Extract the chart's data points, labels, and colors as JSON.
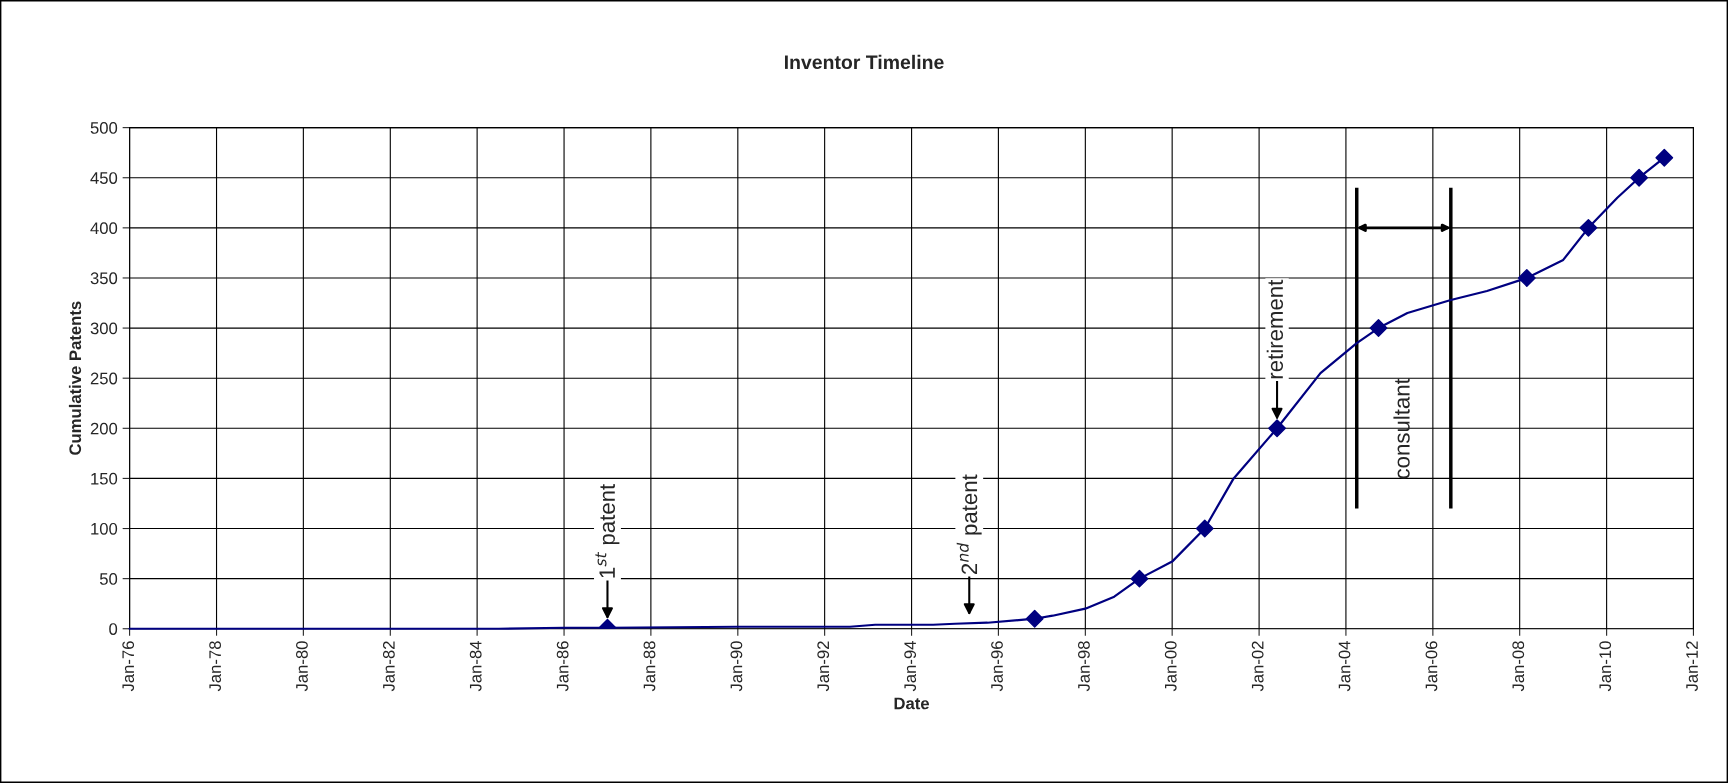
{
  "chart_data": {
    "type": "line",
    "title": "Inventor Timeline",
    "xlabel": "Date",
    "ylabel": "Cumulative Patents",
    "series": [
      {
        "color": "#000080",
        "marker": "none",
        "x": [
          "1976-01",
          "1984-07",
          "1986-01",
          "1987-01",
          "1990-01",
          "1992-08",
          "1993-03",
          "1994-07",
          "1995-01",
          "1995-10",
          "1996-11",
          "1997-04",
          "1998-01",
          "1998-09",
          "1999-04",
          "2000-01",
          "2000-10",
          "2001-06",
          "2002-06",
          "2003-06",
          "2004-04",
          "2004-10",
          "2005-06",
          "2006-06",
          "2007-04",
          "2008-03",
          "2009-01",
          "2009-08",
          "2010-04",
          "2010-10",
          "2011-05"
        ],
        "values": [
          0,
          0,
          1,
          1,
          2,
          2,
          4,
          4,
          5,
          6,
          10,
          13,
          20,
          32,
          50,
          67,
          100,
          150,
          200,
          255,
          285,
          300,
          315,
          328,
          337,
          350,
          368,
          400,
          430,
          450,
          470
        ]
      },
      {
        "type": "scatter",
        "color": "#000080",
        "marker": "diamond",
        "x": [
          "1987-01",
          "1996-11",
          "1999-04",
          "2000-10",
          "2002-06",
          "2004-10",
          "2008-03",
          "2009-08",
          "2010-10",
          "2011-05"
        ],
        "values": [
          1,
          10,
          50,
          100,
          200,
          300,
          350,
          400,
          450,
          470
        ]
      }
    ],
    "xlim": [
      "1976-01",
      "2012-01"
    ],
    "xticks": [
      {
        "value": "1976-01",
        "label": "Jan-76"
      },
      {
        "value": "1978-01",
        "label": "Jan-78"
      },
      {
        "value": "1980-01",
        "label": "Jan-80"
      },
      {
        "value": "1982-01",
        "label": "Jan-82"
      },
      {
        "value": "1984-01",
        "label": "Jan-84"
      },
      {
        "value": "1986-01",
        "label": "Jan-86"
      },
      {
        "value": "1988-01",
        "label": "Jan-88"
      },
      {
        "value": "1990-01",
        "label": "Jan-90"
      },
      {
        "value": "1992-01",
        "label": "Jan-92"
      },
      {
        "value": "1994-01",
        "label": "Jan-94"
      },
      {
        "value": "1996-01",
        "label": "Jan-96"
      },
      {
        "value": "1998-01",
        "label": "Jan-98"
      },
      {
        "value": "2000-01",
        "label": "Jan-00"
      },
      {
        "value": "2002-01",
        "label": "Jan-02"
      },
      {
        "value": "2004-01",
        "label": "Jan-04"
      },
      {
        "value": "2006-01",
        "label": "Jan-06"
      },
      {
        "value": "2008-01",
        "label": "Jan-08"
      },
      {
        "value": "2010-01",
        "label": "Jan-10"
      },
      {
        "value": "2012-01",
        "label": "Jan-12"
      }
    ],
    "ylim": [
      0,
      500
    ],
    "yticks": [
      0,
      50,
      100,
      150,
      200,
      250,
      300,
      350,
      400,
      450,
      500
    ],
    "grid": true,
    "legend": false,
    "annotations": [
      {
        "text": "1$^{st}$ patent",
        "x": "1987-01",
        "y": 1
      },
      {
        "text": "2$^{nd}$ patent",
        "x": "1995-05",
        "y": 5
      },
      {
        "text": "retirement",
        "x": "2002-06",
        "y": 200
      },
      "consultant"
    ],
    "ref_lines": [
      {
        "axis": "x",
        "value": "2004-04",
        "color": "#000000"
      },
      {
        "axis": "x",
        "value": "2006-06",
        "color": "#000000"
      }
    ]
  }
}
